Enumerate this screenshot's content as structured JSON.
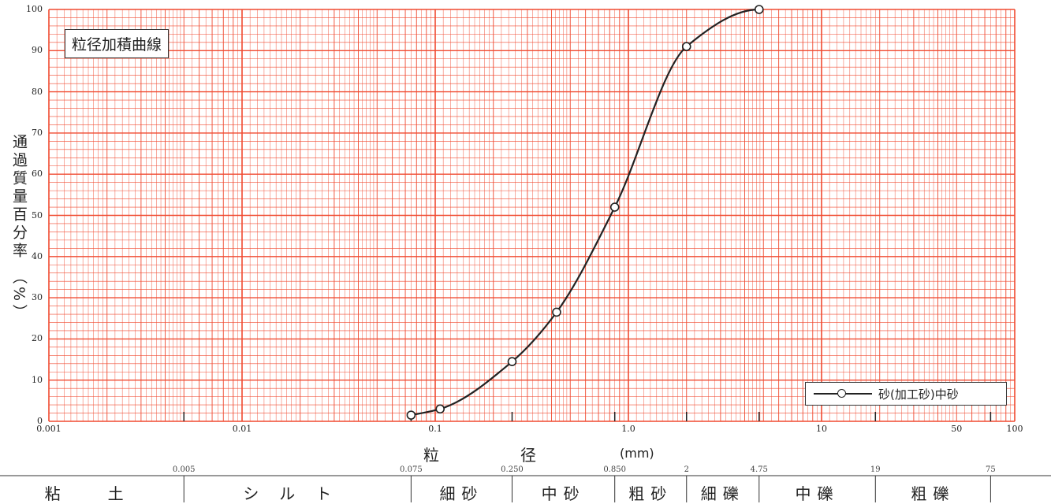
{
  "title": "粒径加積曲線",
  "chart_data": {
    "type": "line",
    "xscale": "log",
    "xlim": [
      0.001,
      100
    ],
    "ylim": [
      0,
      100
    ],
    "x_ticks": [
      "0.001",
      "0.01",
      "0.1",
      "1.0",
      "10",
      "50",
      "100"
    ],
    "y_ticks": [
      "0",
      "10",
      "20",
      "30",
      "40",
      "50",
      "60",
      "70",
      "80",
      "90",
      "100"
    ],
    "ylabel": "通過質量百分率 （%）",
    "xlabel_parts": [
      "粒",
      "径",
      "(mm)"
    ],
    "grid": true,
    "legend": "bottom-right",
    "series": [
      {
        "name": "砂(加工砂)中砂",
        "x": [
          0.075,
          0.106,
          0.25,
          0.425,
          0.85,
          2.0,
          4.75
        ],
        "y": [
          1.5,
          3.0,
          14.5,
          26.5,
          52.0,
          91.0,
          100.0
        ]
      }
    ]
  },
  "classification": {
    "boundaries": [
      "0.005",
      "0.075",
      "0.250",
      "0.850",
      "2",
      "4.75",
      "19",
      "75"
    ],
    "boundary_values": [
      0.005,
      0.075,
      0.25,
      0.85,
      2,
      4.75,
      19,
      75
    ],
    "classes": [
      "粘土",
      "シルト",
      "細砂",
      "中砂",
      "粗砂",
      "細礫",
      "中礫",
      "粗礫"
    ]
  },
  "colors": {
    "grid": "#f04a30",
    "line": "#222222"
  }
}
